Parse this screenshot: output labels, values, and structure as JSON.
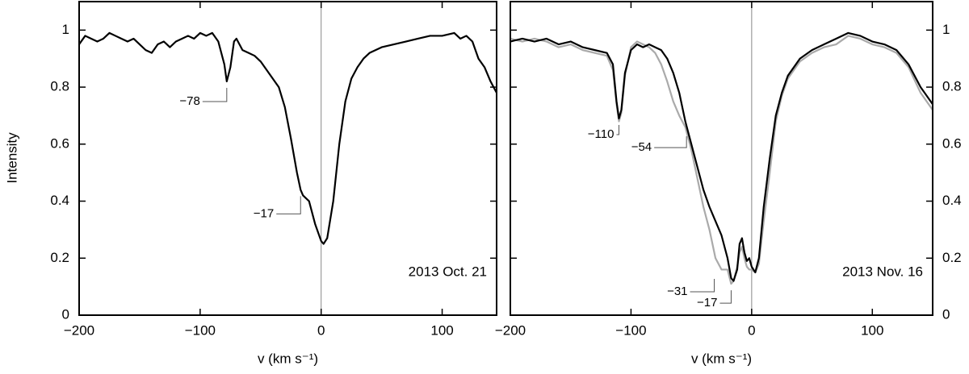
{
  "chart_data": [
    {
      "type": "line",
      "ylabel": "Intensity",
      "xlabel": "v (km s⁻¹)",
      "title": "2013 Oct. 21",
      "xlim": [
        -200,
        145
      ],
      "ylim": [
        0,
        1.1
      ],
      "xticks": [
        {
          "value": -200,
          "label": "−200"
        },
        {
          "value": -100,
          "label": "−100"
        },
        0,
        100
      ],
      "yticks": [
        0,
        0.2,
        0.4,
        0.6,
        0.8,
        1
      ],
      "vline": 0,
      "x": [
        -200,
        -195,
        -190,
        -185,
        -180,
        -175,
        -170,
        -165,
        -160,
        -155,
        -150,
        -145,
        -140,
        -135,
        -130,
        -125,
        -120,
        -115,
        -110,
        -105,
        -100,
        -95,
        -90,
        -85,
        -80,
        -78,
        -75,
        -72,
        -70,
        -65,
        -60,
        -55,
        -50,
        -45,
        -40,
        -35,
        -30,
        -25,
        -20,
        -17,
        -15,
        -10,
        -5,
        0,
        2,
        5,
        10,
        15,
        20,
        25,
        30,
        35,
        40,
        45,
        50,
        60,
        70,
        80,
        90,
        100,
        110,
        115,
        120,
        125,
        130,
        135,
        140,
        145
      ],
      "series": [
        {
          "color": "#000000",
          "values": [
            0.95,
            0.98,
            0.97,
            0.96,
            0.97,
            0.99,
            0.98,
            0.97,
            0.96,
            0.97,
            0.95,
            0.93,
            0.92,
            0.95,
            0.96,
            0.94,
            0.96,
            0.97,
            0.98,
            0.97,
            0.99,
            0.98,
            0.99,
            0.96,
            0.88,
            0.82,
            0.87,
            0.96,
            0.97,
            0.93,
            0.92,
            0.91,
            0.89,
            0.86,
            0.83,
            0.8,
            0.73,
            0.62,
            0.5,
            0.44,
            0.42,
            0.4,
            0.32,
            0.26,
            0.25,
            0.27,
            0.4,
            0.6,
            0.75,
            0.83,
            0.87,
            0.9,
            0.92,
            0.93,
            0.94,
            0.95,
            0.96,
            0.97,
            0.98,
            0.98,
            0.99,
            0.97,
            0.98,
            0.96,
            0.9,
            0.87,
            0.82,
            0.78
          ]
        }
      ],
      "annotations": [
        {
          "text": "−78",
          "x": -78,
          "y": 0.82
        },
        {
          "text": "−17",
          "x": -17,
          "y": 0.44
        }
      ]
    },
    {
      "type": "line",
      "xlabel": "v (km s⁻¹)",
      "title": "2013 Nov. 16",
      "xlim": [
        -200,
        150
      ],
      "ylim": [
        0,
        1.1
      ],
      "xticks": [
        {
          "value": -200,
          "label": "−200"
        },
        {
          "value": -100,
          "label": "−100"
        },
        0,
        100
      ],
      "yticks": [
        0,
        0.2,
        0.4,
        0.6,
        0.8,
        1
      ],
      "vline": 0,
      "x": [
        -200,
        -190,
        -180,
        -170,
        -160,
        -150,
        -140,
        -130,
        -120,
        -115,
        -112,
        -110,
        -108,
        -105,
        -100,
        -95,
        -90,
        -85,
        -80,
        -75,
        -70,
        -65,
        -60,
        -55,
        -50,
        -45,
        -40,
        -35,
        -30,
        -25,
        -20,
        -17,
        -15,
        -12,
        -10,
        -8,
        -6,
        -4,
        -2,
        0,
        3,
        6,
        10,
        15,
        20,
        25,
        30,
        40,
        50,
        60,
        70,
        80,
        90,
        100,
        110,
        120,
        130,
        140,
        150
      ],
      "series": [
        {
          "color": "#000000",
          "values": [
            0.96,
            0.97,
            0.96,
            0.97,
            0.95,
            0.96,
            0.94,
            0.93,
            0.92,
            0.88,
            0.75,
            0.69,
            0.72,
            0.85,
            0.93,
            0.95,
            0.94,
            0.95,
            0.94,
            0.93,
            0.9,
            0.85,
            0.78,
            0.68,
            0.6,
            0.52,
            0.44,
            0.38,
            0.33,
            0.28,
            0.2,
            0.13,
            0.12,
            0.16,
            0.25,
            0.27,
            0.22,
            0.19,
            0.2,
            0.17,
            0.15,
            0.2,
            0.38,
            0.55,
            0.7,
            0.78,
            0.84,
            0.9,
            0.93,
            0.95,
            0.97,
            0.99,
            0.98,
            0.96,
            0.95,
            0.93,
            0.88,
            0.8,
            0.74
          ]
        },
        {
          "color": "#aaaaaa",
          "values": [
            0.97,
            0.96,
            0.97,
            0.96,
            0.94,
            0.95,
            0.93,
            0.92,
            0.91,
            0.86,
            0.74,
            0.68,
            0.71,
            0.84,
            0.94,
            0.96,
            0.95,
            0.94,
            0.92,
            0.88,
            0.82,
            0.75,
            0.7,
            0.66,
            0.58,
            0.48,
            0.38,
            0.3,
            0.2,
            0.16,
            0.16,
            0.11,
            0.12,
            0.17,
            0.22,
            0.24,
            0.2,
            0.17,
            0.16,
            0.16,
            0.15,
            0.18,
            0.33,
            0.5,
            0.68,
            0.77,
            0.83,
            0.89,
            0.92,
            0.94,
            0.95,
            0.98,
            0.97,
            0.95,
            0.94,
            0.92,
            0.87,
            0.78,
            0.72
          ]
        }
      ],
      "annotations": [
        {
          "text": "−110",
          "x": -110,
          "y": 0.69
        },
        {
          "text": "−54",
          "x": -54,
          "y": 0.65
        },
        {
          "text": "−31",
          "x": -31,
          "y": 0.15
        },
        {
          "text": "−17",
          "x": -17,
          "y": 0.11
        }
      ]
    }
  ]
}
